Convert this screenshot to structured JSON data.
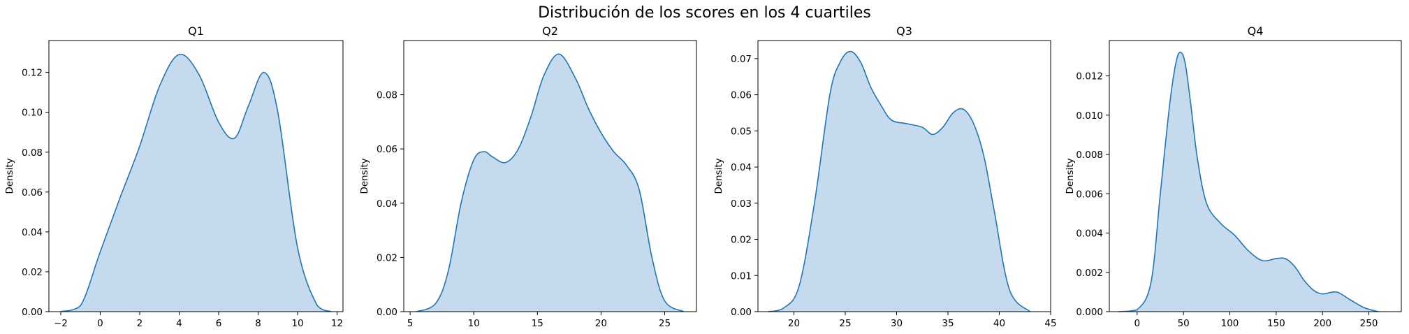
{
  "figure": {
    "suptitle": "Distribución de los scores en los 4 cuartiles",
    "line_color": "#1f77b4",
    "fill_color": "#c5dbed"
  },
  "chart_data": [
    {
      "type": "area",
      "title": "Q1",
      "xlabel": "",
      "ylabel": "Density",
      "xlim": [
        -2.6,
        12.3
      ],
      "ylim": [
        0,
        0.136
      ],
      "xticks": [
        -2,
        0,
        2,
        4,
        6,
        8,
        10,
        12
      ],
      "yticks": [
        0.0,
        0.02,
        0.04,
        0.06,
        0.08,
        0.1,
        0.12
      ],
      "ytick_labels": [
        "0.00",
        "0.02",
        "0.04",
        "0.06",
        "0.08",
        "0.10",
        "0.12"
      ],
      "x": [
        -2.0,
        -1.0,
        0.0,
        1.0,
        2.0,
        3.0,
        4.0,
        5.0,
        6.0,
        6.8,
        7.5,
        8.3,
        9.0,
        10.0,
        11.0,
        11.7
      ],
      "y": [
        0.0,
        0.003,
        0.03,
        0.057,
        0.083,
        0.113,
        0.129,
        0.119,
        0.095,
        0.087,
        0.103,
        0.12,
        0.1,
        0.032,
        0.003,
        0.0
      ]
    },
    {
      "type": "area",
      "title": "Q2",
      "xlabel": "",
      "ylabel": "Density",
      "xlim": [
        4.5,
        27.5
      ],
      "ylim": [
        0,
        0.1
      ],
      "xticks": [
        5,
        10,
        15,
        20,
        25
      ],
      "yticks": [
        0.0,
        0.02,
        0.04,
        0.06,
        0.08
      ],
      "ytick_labels": [
        "0.00",
        "0.02",
        "0.04",
        "0.06",
        "0.08"
      ],
      "x": [
        5.5,
        7.0,
        8.0,
        9.0,
        10.0,
        10.8,
        11.5,
        12.5,
        13.5,
        14.5,
        15.5,
        16.7,
        18.0,
        19.0,
        20.0,
        21.0,
        22.0,
        23.0,
        24.0,
        25.0,
        26.5
      ],
      "y": [
        0.0,
        0.003,
        0.015,
        0.04,
        0.056,
        0.059,
        0.057,
        0.055,
        0.06,
        0.072,
        0.087,
        0.095,
        0.086,
        0.075,
        0.066,
        0.059,
        0.054,
        0.045,
        0.02,
        0.004,
        0.0
      ]
    },
    {
      "type": "area",
      "title": "Q3",
      "xlabel": "",
      "ylabel": "Density",
      "xlim": [
        16.5,
        45.0
      ],
      "ylim": [
        0,
        0.075
      ],
      "xticks": [
        20,
        25,
        30,
        35,
        40,
        45
      ],
      "yticks": [
        0.0,
        0.01,
        0.02,
        0.03,
        0.04,
        0.05,
        0.06,
        0.07
      ],
      "ytick_labels": [
        "0.00",
        "0.01",
        "0.02",
        "0.03",
        "0.04",
        "0.05",
        "0.06",
        "0.07"
      ],
      "x": [
        17.5,
        19.0,
        20.5,
        22.0,
        23.5,
        24.5,
        25.5,
        26.5,
        27.5,
        28.5,
        29.5,
        31.0,
        32.5,
        33.5,
        34.5,
        35.5,
        36.5,
        37.5,
        38.5,
        39.5,
        41.0,
        43.0
      ],
      "y": [
        0.0,
        0.001,
        0.007,
        0.03,
        0.06,
        0.069,
        0.072,
        0.069,
        0.062,
        0.057,
        0.053,
        0.052,
        0.051,
        0.049,
        0.051,
        0.055,
        0.056,
        0.052,
        0.043,
        0.028,
        0.006,
        0.0
      ]
    },
    {
      "type": "area",
      "title": "Q4",
      "xlabel": "",
      "ylabel": "Density",
      "xlim": [
        -30.0,
        285.0
      ],
      "ylim": [
        0,
        0.0138
      ],
      "xticks": [
        0,
        50,
        100,
        150,
        200,
        250
      ],
      "yticks": [
        0.0,
        0.002,
        0.004,
        0.006,
        0.008,
        0.01,
        0.012
      ],
      "ytick_labels": [
        "0.000",
        "0.002",
        "0.004",
        "0.006",
        "0.008",
        "0.010",
        "0.012"
      ],
      "x": [
        -20,
        0,
        15,
        25,
        35,
        42,
        47,
        52,
        58,
        65,
        75,
        90,
        105,
        120,
        135,
        150,
        160,
        170,
        180,
        190,
        200,
        215,
        230,
        245,
        260
      ],
      "y": [
        0.0,
        0.0001,
        0.0015,
        0.006,
        0.0105,
        0.0127,
        0.0132,
        0.0126,
        0.0105,
        0.0078,
        0.0055,
        0.0045,
        0.0039,
        0.0031,
        0.0026,
        0.0027,
        0.0027,
        0.0023,
        0.0016,
        0.0011,
        0.0009,
        0.001,
        0.0006,
        0.0002,
        0.0
      ]
    }
  ]
}
